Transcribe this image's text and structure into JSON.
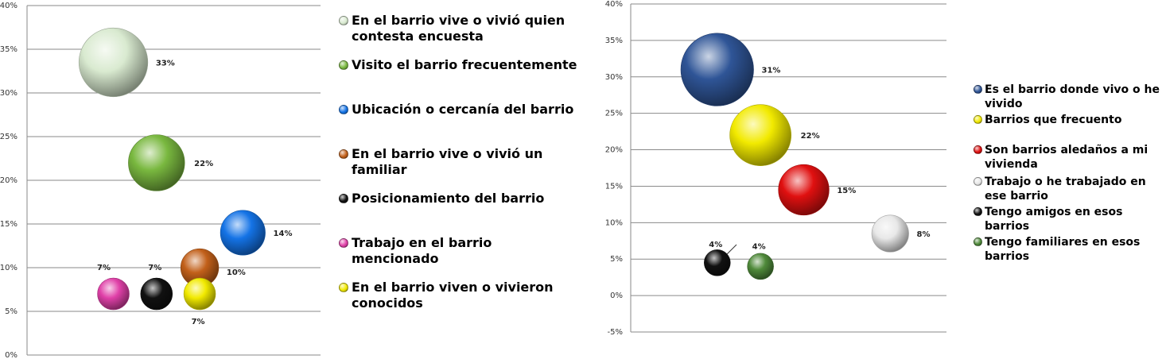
{
  "chart_data": [
    {
      "type": "bubble",
      "ylim": [
        0,
        40
      ],
      "y_ticks": [
        "0%",
        "5%",
        "10%",
        "15%",
        "20%",
        "25%",
        "30%",
        "35%",
        "40%"
      ],
      "grid": true,
      "legend_position": "right",
      "series": [
        {
          "name": "En el barrio vive o vivió quien contesta encuesta",
          "x": 2,
          "y": 33.5,
          "size": 33,
          "label": "33%",
          "color": "#d9ead0"
        },
        {
          "name": "Visito el barrio frecuentemente",
          "x": 3,
          "y": 22,
          "size": 22,
          "label": "22%",
          "color": "#79b83f"
        },
        {
          "name": "Ubicación o cercanía del barrio",
          "x": 5,
          "y": 14,
          "size": 14,
          "label": "14%",
          "color": "#1473e6"
        },
        {
          "name": "En el barrio vive o vivió un familiar",
          "x": 4,
          "y": 10,
          "size": 10,
          "label": "10%",
          "color": "#c2601a"
        },
        {
          "name": "Posicionamiento del barrio",
          "x": 3,
          "y": 7,
          "size": 7,
          "label": "7%",
          "color": "#111111"
        },
        {
          "name": "Trabajo en el barrio mencionado",
          "x": 2,
          "y": 7,
          "size": 7,
          "label": "7%",
          "color": "#e040a8"
        },
        {
          "name": "En el barrio viven o vivieron conocidos",
          "x": 4,
          "y": 7,
          "size": 7,
          "label": "7%",
          "color": "#f2ea00"
        }
      ]
    },
    {
      "type": "bubble",
      "ylim": [
        -5,
        40
      ],
      "y_ticks": [
        "-5%",
        "0%",
        "5%",
        "10%",
        "15%",
        "20%",
        "25%",
        "30%",
        "35%",
        "40%"
      ],
      "grid": true,
      "legend_position": "right",
      "series": [
        {
          "name": "Es el barrio donde vivo o he vivido",
          "x": 2,
          "y": 31,
          "size": 31,
          "label": "31%",
          "color": "#2f5597"
        },
        {
          "name": "Barrios que frecuento",
          "x": 3,
          "y": 22,
          "size": 22,
          "label": "22%",
          "color": "#f2ea00"
        },
        {
          "name": "Son barrios aledaños a mi vivienda",
          "x": 4,
          "y": 14.5,
          "size": 15,
          "label": "15%",
          "color": "#e01010"
        },
        {
          "name": "Trabajo o he trabajado en ese barrio",
          "x": 6,
          "y": 8.5,
          "size": 8,
          "label": "8%",
          "color": "#e8e8e8"
        },
        {
          "name": "Tengo amigos en esos barrios",
          "x": 2,
          "y": 4.5,
          "size": 4,
          "label": "4%",
          "color": "#111111"
        },
        {
          "name": "Tengo familiares en esos barrios",
          "x": 3,
          "y": 4,
          "size": 4,
          "label": "4%",
          "color": "#4f8a3a"
        }
      ]
    }
  ]
}
